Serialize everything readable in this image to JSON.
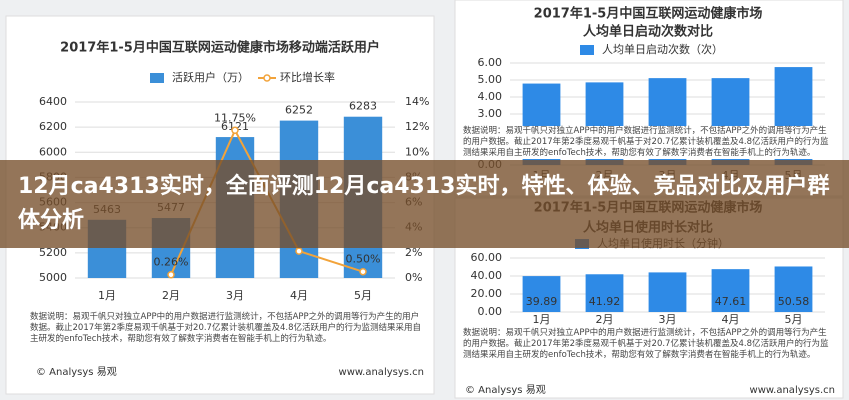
{
  "overlay_title": "12月ca4313实时，全面评测12月ca4313实时，特性、体验、竞品对比及用户群体分析",
  "chart_data": [
    {
      "type": "bar",
      "title": "2017年1-5月中国互联网运动健康市场移动端活跃用户",
      "categories": [
        "1月",
        "2月",
        "3月",
        "4月",
        "5月"
      ],
      "series": [
        {
          "name": "活跃用户（万）",
          "type": "bar",
          "color": "#3b8fd8",
          "values": [
            5463,
            5477,
            6121,
            6252,
            6283
          ]
        },
        {
          "name": "环比增长率",
          "type": "line",
          "axis": "y2",
          "color": "#f2a33a",
          "values": [
            null,
            0.26,
            11.75,
            2.14,
            0.5
          ],
          "value_labels": [
            null,
            "0.26%",
            "11.75%",
            null,
            "0.50%"
          ]
        }
      ],
      "ylim": [
        5000,
        6400
      ],
      "yticks": [
        5000,
        5200,
        5400,
        5600,
        5800,
        6000,
        6200,
        6400
      ],
      "y2lim": [
        0,
        14
      ],
      "y2ticks": [
        {
          "value": 0,
          "label": "0%"
        },
        {
          "value": 2,
          "label": "2%"
        },
        {
          "value": 4,
          "label": "4%"
        },
        {
          "value": 6,
          "label": "6%"
        },
        {
          "value": 8,
          "label": "8%"
        },
        {
          "value": 10,
          "label": "10%"
        },
        {
          "value": 12,
          "label": "12%"
        },
        {
          "value": 14,
          "label": "14%"
        }
      ],
      "grid": true,
      "note": "数据说明：易观千帆只对独立APP中的用户数据进行监测统计，不包括APP之外的调用等行为产生的用户数据。截止2017年第2季度易观千帆基于对20.7亿累计装机覆盖及4.8亿活跃用户的行为监测结果采用自主研发的enfoTech技术，帮助您有效了解数字消费者在智能手机上的行为轨迹。",
      "source": "© Analysys 易观",
      "url": "www.analysys.cn"
    },
    {
      "type": "bar",
      "title": "2017年1-5月中国互联网运动健康市场",
      "subtitle": "人均单日启动次数对比",
      "categories": [
        "1月",
        "2月",
        "3月",
        "4月",
        "5月"
      ],
      "series": [
        {
          "name": "人均单日启动次数（次）",
          "type": "bar",
          "color": "#2e8ae6",
          "values": [
            4.79,
            4.86,
            5.11,
            5.11,
            5.76
          ]
        }
      ],
      "ylim": [
        0,
        6
      ],
      "yticks": [
        {
          "value": 0,
          "label": "0.00"
        },
        {
          "value": 1,
          "label": "1.00"
        },
        {
          "value": 2,
          "label": "2.00"
        },
        {
          "value": 3,
          "label": "3.00"
        },
        {
          "value": 4,
          "label": "4.00"
        },
        {
          "value": 5,
          "label": "5.00"
        },
        {
          "value": 6,
          "label": "6.00"
        }
      ],
      "grid": true,
      "note": "数据说明：易观千帆只对独立APP中的用户数据进行监测统计，不包括APP之外的调用等行为产生的用户数据。截止2017年第2季度易观千帆基于对20.7亿累计装机覆盖及4.8亿活跃用户的行为监测结果采用自主研发的enfoTech技术，帮助您有效了解数字消费者在智能手机上的行为轨迹。"
    },
    {
      "type": "bar",
      "title": "2017年1-5月中国互联网运动健康市场",
      "subtitle": "人均单日使用时长对比",
      "categories": [
        "1月",
        "2月",
        "3月",
        "4月",
        "5月"
      ],
      "series": [
        {
          "name": "人均单日使用时长（分钟）",
          "type": "bar",
          "color": "#2e8ae6",
          "values": [
            39.89,
            41.92,
            44,
            47.61,
            50.58
          ],
          "value_labels": [
            "39.89",
            "41.92",
            null,
            "47.61",
            "50.58"
          ]
        }
      ],
      "ylim": [
        0,
        60
      ],
      "yticks": [
        {
          "value": 0,
          "label": "0.00"
        },
        {
          "value": 20,
          "label": "20.00"
        },
        {
          "value": 40,
          "label": "40.00"
        },
        {
          "value": 60,
          "label": "60.00"
        }
      ],
      "grid": true,
      "note": "数据说明：易观千帆只对独立APP中的用户数据进行监测统计，不包括APP之外的调用等行为产生的用户数据。截止2017年第2季度易观千帆基于对20.7亿累计装机覆盖及4.8亿活跃用户的行为监测结果采用自主研发的enfoTech技术，帮助您有效了解数字消费者在智能手机上的行为轨迹。",
      "source": "© Analysys 易观",
      "url": "www.analysys.cn"
    }
  ]
}
